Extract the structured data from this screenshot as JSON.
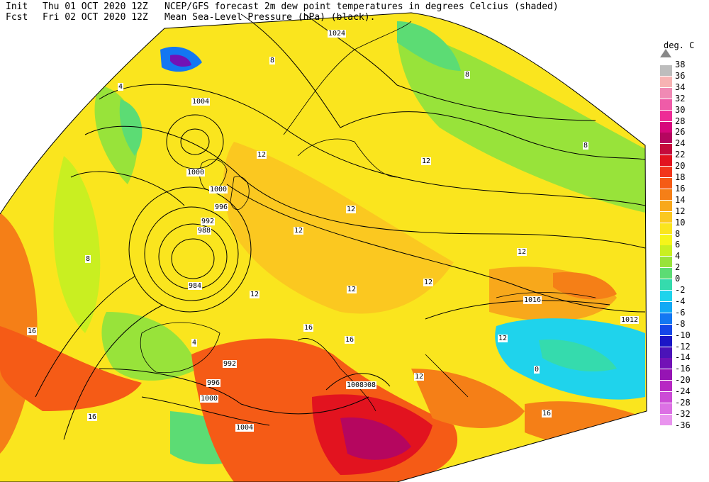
{
  "header": {
    "init_label": "Init",
    "init_value": "Thu 01 OCT 2020 12Z",
    "fcst_label": "Fcst",
    "fcst_value": "Fri 02 OCT 2020 12Z",
    "title_line1": "NCEP/GFS forecast 2m dew point temperatures in degrees Celcius (shaded)",
    "title_line2": "Mean Sea-Level Pressure (hPa) (black)."
  },
  "legend": {
    "unit": "deg. C",
    "levels": [
      {
        "label": "38",
        "color": "#bdbdbd"
      },
      {
        "label": "36",
        "color": "#f7b3b3"
      },
      {
        "label": "34",
        "color": "#f08ab4"
      },
      {
        "label": "32",
        "color": "#ef5ca8"
      },
      {
        "label": "30",
        "color": "#ee2c96"
      },
      {
        "label": "28",
        "color": "#d7077c"
      },
      {
        "label": "26",
        "color": "#b5065f"
      },
      {
        "label": "24",
        "color": "#c40a3c"
      },
      {
        "label": "22",
        "color": "#e2131f"
      },
      {
        "label": "20",
        "color": "#f2361b"
      },
      {
        "label": "18",
        "color": "#f55b16"
      },
      {
        "label": "16",
        "color": "#f57f17"
      },
      {
        "label": "14",
        "color": "#f8a81b"
      },
      {
        "label": "12",
        "color": "#fbc820"
      },
      {
        "label": "10",
        "color": "#fae51e"
      },
      {
        "label": "8",
        "color": "#f6f51a"
      },
      {
        "label": "6",
        "color": "#c9ef21"
      },
      {
        "label": "4",
        "color": "#98e33a"
      },
      {
        "label": "2",
        "color": "#5cdc74"
      },
      {
        "label": "0",
        "color": "#35dbad"
      },
      {
        "label": "-2",
        "color": "#1fd3ec"
      },
      {
        "label": "-4",
        "color": "#12a9f5"
      },
      {
        "label": "-6",
        "color": "#1377f2"
      },
      {
        "label": "-8",
        "color": "#1546e8"
      },
      {
        "label": "-10",
        "color": "#1b16c6"
      },
      {
        "label": "-12",
        "color": "#4a13b8"
      },
      {
        "label": "-14",
        "color": "#7212b6"
      },
      {
        "label": "-16",
        "color": "#9614b4"
      },
      {
        "label": "-20",
        "color": "#b728c3"
      },
      {
        "label": "-24",
        "color": "#cc4bd6"
      },
      {
        "label": "-28",
        "color": "#dc70e4"
      },
      {
        "label": "-32",
        "color": "#e994ee"
      },
      {
        "label": "-36",
        "color": "#f4b9f6"
      }
    ]
  },
  "isobars": {
    "labels": [
      "1024",
      "1004",
      "1000",
      "996",
      "992",
      "988",
      "984",
      "1016",
      "1012",
      "1008",
      "992",
      "996",
      "1000",
      "1004",
      "1008",
      "1000"
    ]
  },
  "shaded_labels": {
    "labels": [
      "8",
      "4",
      "8",
      "12",
      "12",
      "12",
      "12",
      "12",
      "12",
      "12",
      "16",
      "16",
      "16",
      "12",
      "12",
      "12",
      "16",
      "4",
      "8",
      "0",
      "8",
      "16"
    ]
  }
}
